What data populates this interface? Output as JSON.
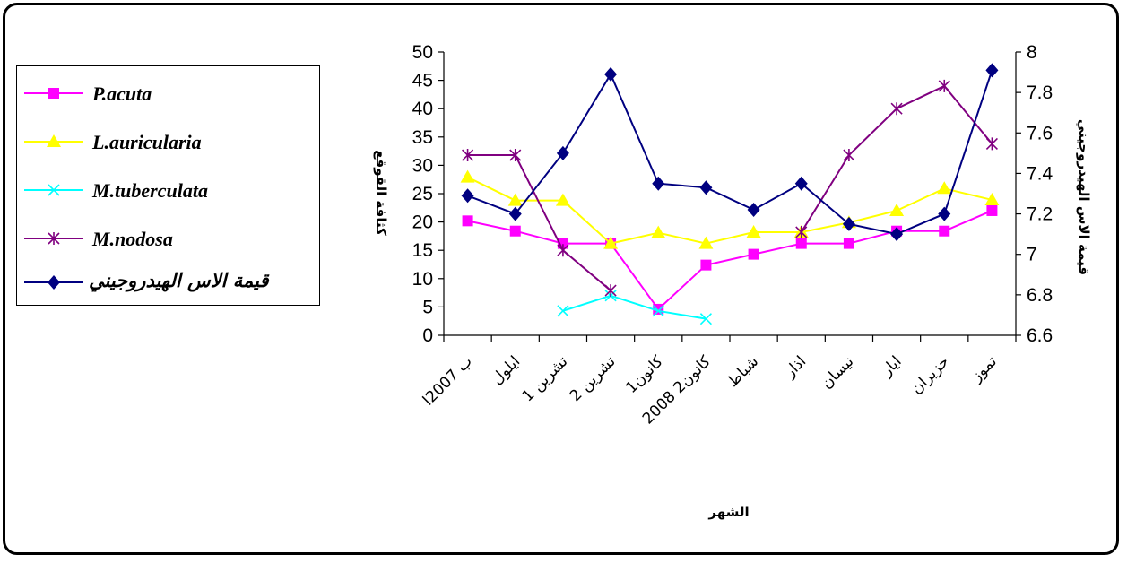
{
  "chart_data": {
    "type": "line",
    "categories": [
      "ب 2007ا",
      "ايلول",
      "تشرين 1",
      "تشرين 2",
      "كانون1",
      "كانون2 2008",
      "شباط",
      "اذار",
      "نيسان",
      "ايار",
      "حزيران",
      "تموز"
    ],
    "xlabel": "الشهر",
    "ylabel": "كثافة القوقع",
    "y2label": "قيمة الاس الهيدروجيني",
    "ylim": [
      0,
      50
    ],
    "y_ticks": [
      0,
      5,
      10,
      15,
      20,
      25,
      30,
      35,
      40,
      45,
      50
    ],
    "y2lim": [
      6.6,
      8
    ],
    "y2_ticks": [
      "6.6",
      "6.8",
      "7",
      "7.2",
      "7.4",
      "7.6",
      "7.8",
      "8"
    ],
    "grid": false,
    "legend_position": "left",
    "series": [
      {
        "name": "P.acuta",
        "axis": "left",
        "color": "#FF00FF",
        "marker": "square",
        "values": [
          20.2,
          18.4,
          16.2,
          16.2,
          4.6,
          12.4,
          14.3,
          16.2,
          16.2,
          18.4,
          18.4,
          22
        ]
      },
      {
        "name": "L.auricularia",
        "axis": "left",
        "color": "#FFFF00",
        "marker": "triangle",
        "values": [
          27.9,
          23.8,
          23.8,
          16.2,
          18.1,
          16.2,
          18.2,
          18.2,
          19.9,
          22,
          25.9,
          23.9
        ]
      },
      {
        "name": "M.tuberculata",
        "axis": "left",
        "color": "#00FFFF",
        "marker": "x",
        "values": [
          null,
          null,
          4.3,
          7,
          4.3,
          2.9,
          null,
          null,
          null,
          null,
          null,
          null
        ]
      },
      {
        "name": "M.nodosa",
        "axis": "left",
        "color": "#800080",
        "marker": "star",
        "values": [
          31.8,
          31.8,
          15,
          7.9,
          null,
          null,
          null,
          18.2,
          31.8,
          40,
          44,
          33.8
        ]
      },
      {
        "name": "قيمة الاس الهيدروجيني",
        "axis": "right",
        "color": "#000080",
        "marker": "diamond",
        "values": [
          7.29,
          7.2,
          7.5,
          7.89,
          7.35,
          7.33,
          7.22,
          7.35,
          7.15,
          7.1,
          7.2,
          7.91
        ]
      }
    ]
  }
}
